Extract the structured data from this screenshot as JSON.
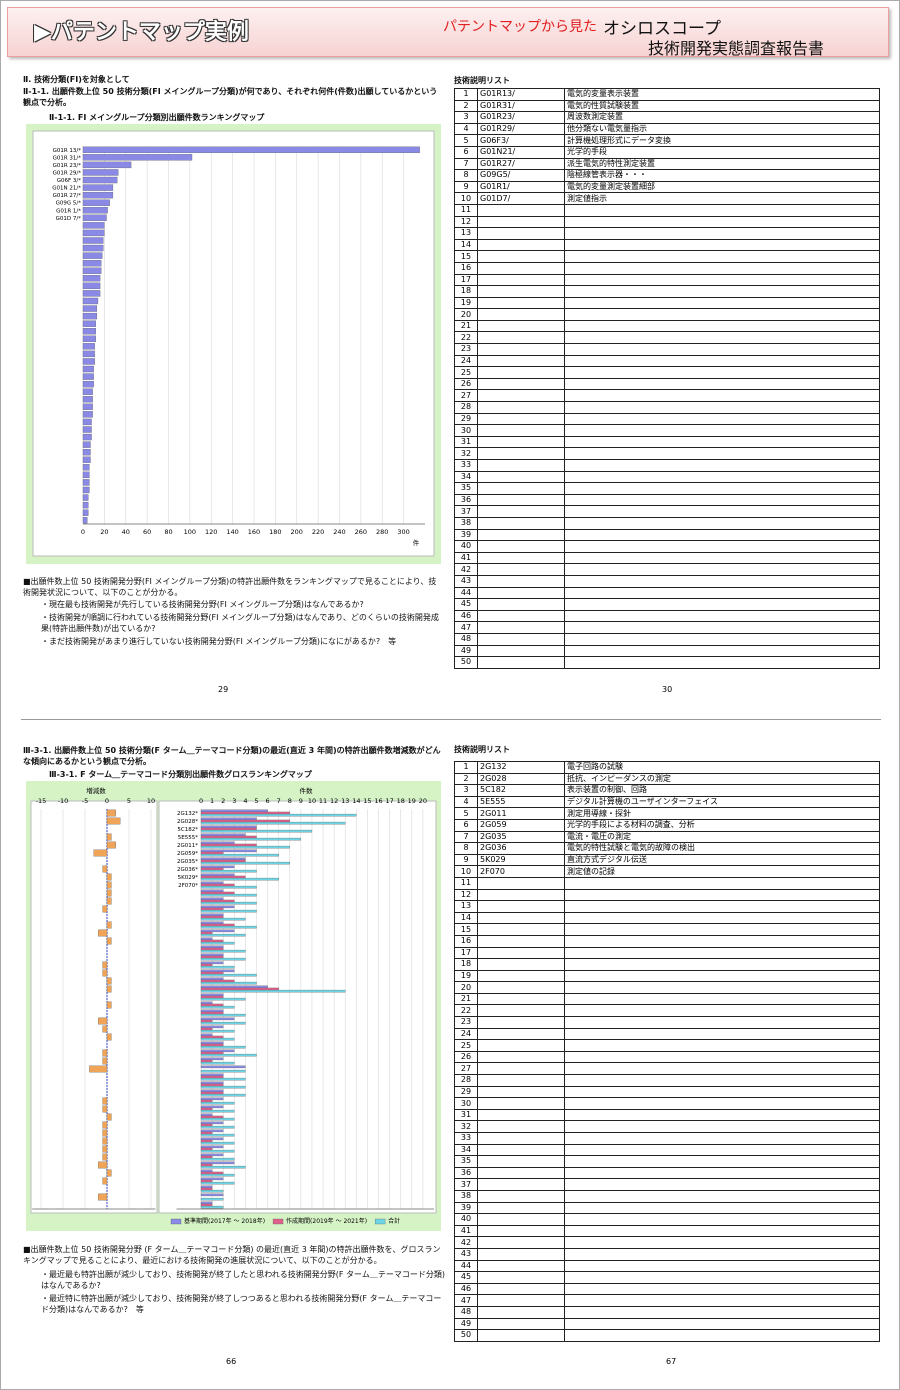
{
  "header": {
    "title": "▶パテントマップ実例",
    "subtitle": "パテントマップから見た",
    "product": "オシロスコープ",
    "report": "技術開発実態調査報告書"
  },
  "pages": [
    {
      "heading": "Ⅱ. 技術分類(FI)を対象として",
      "subheading": "Ⅱ-1-1. 出願件数上位 50 技術分類(FI メイングループ分類)が何であり、それぞれ何件(件数)出願しているかという観点で分析。",
      "chart_title": "Ⅱ-1-1. FI メイングループ分類別出願件数ランキングマップ",
      "chart_data": {
        "type": "bar",
        "categories": [
          "G01R 13/*",
          "G01R 31/*",
          "G01R 23/*",
          "G01R 29/*",
          "G06F 3/*",
          "G01N 21/*",
          "G01R 27/*",
          "G09G 5/*",
          "G01R 1/*",
          "G01D 7/*",
          null,
          null,
          null,
          null,
          null,
          null,
          null,
          null,
          null,
          null,
          null,
          null,
          null,
          null,
          null,
          null,
          null,
          null,
          null,
          null,
          null,
          null,
          null,
          null,
          null,
          null,
          null,
          null,
          null,
          null,
          null,
          null,
          null,
          null,
          null,
          null,
          null,
          null,
          null,
          null
        ],
        "values": [
          315,
          102,
          45,
          33,
          32,
          28,
          28,
          25,
          23,
          22,
          20,
          20,
          19,
          19,
          18,
          17,
          17,
          16,
          16,
          16,
          14,
          13,
          13,
          12,
          12,
          12,
          11,
          11,
          11,
          10,
          10,
          10,
          9,
          9,
          9,
          9,
          8,
          8,
          8,
          7,
          7,
          7,
          6,
          6,
          6,
          6,
          5,
          5,
          5,
          4
        ],
        "color": "#8a8ae6",
        "xlim": [
          0,
          320
        ],
        "xticks": [
          0,
          20,
          40,
          60,
          80,
          100,
          120,
          140,
          160,
          180,
          200,
          220,
          240,
          260,
          280,
          300
        ],
        "xlabel": "件",
        "grid": true
      },
      "note": "■出願件数上位 50 技術開発分野(FI メイングループ分類)の特許出願件数をランキングマップで見ることにより、技術開発状況について、以下のことが分かる。",
      "bullets": [
        "・現在最も技術開発が先行している技術開発分野(FI メイングループ分類)はなんであるか?",
        "・技術開発が順調に行われている技術開発分野(FI メイングループ分類)はなんであり、どのくらいの技術開発成果(特許出願件数)が出ているか?",
        "・まだ技術開発があまり進行していない技術開発分野(FI メイングループ分類)になにがあるか?　等"
      ],
      "list_title": "技術説明リスト",
      "table": {
        "rows": [
          [
            1,
            "G01R13/",
            "電気的変量表示装置"
          ],
          [
            2,
            "G01R31/",
            "電気的性質試験装置"
          ],
          [
            3,
            "G01R23/",
            "周波数測定装置"
          ],
          [
            4,
            "G01R29/",
            "他分類ない電気量指示"
          ],
          [
            5,
            "G06F3/",
            "計算機処理形式にデータ変換"
          ],
          [
            6,
            "G01N21/",
            "光学的手段"
          ],
          [
            7,
            "G01R27/",
            "派生電気的特性測定装置"
          ],
          [
            8,
            "G09G5/",
            "陰極線管表示器・・・"
          ],
          [
            9,
            "G01R1/",
            "電気的変量測定装置細部"
          ],
          [
            10,
            "G01D7/",
            "測定値指示"
          ],
          [
            11
          ],
          [
            12
          ],
          [
            13
          ],
          [
            14
          ],
          [
            15
          ],
          [
            16
          ],
          [
            17
          ],
          [
            18
          ],
          [
            19
          ],
          [
            20
          ],
          [
            21
          ],
          [
            22
          ],
          [
            23
          ],
          [
            24
          ],
          [
            25
          ],
          [
            26
          ],
          [
            27
          ],
          [
            28
          ],
          [
            29
          ],
          [
            30
          ],
          [
            31
          ],
          [
            32
          ],
          [
            33
          ],
          [
            34
          ],
          [
            35
          ],
          [
            36
          ],
          [
            37
          ],
          [
            38
          ],
          [
            39
          ],
          [
            40
          ],
          [
            41
          ],
          [
            42
          ],
          [
            43
          ],
          [
            44
          ],
          [
            45
          ],
          [
            46
          ],
          [
            47
          ],
          [
            48
          ],
          [
            49
          ],
          [
            50
          ]
        ]
      },
      "page_numbers": [
        29,
        30
      ]
    },
    {
      "subheading": "Ⅲ-3-1. 出願件数上位 50 技術分類(F ターム＿テーマコード分類)の最近(直近 3 年間)の特許出願件数増減数がどんな傾向にあるかという観点で分析。",
      "chart_title": "Ⅲ-3-1. F ターム＿テーマコード分類別出願件数グロスランキングマップ",
      "chart_data": [
        {
          "type": "bar",
          "xlabel": "増減数",
          "values": [
            2,
            3,
            0,
            1,
            2,
            -3,
            0,
            -1,
            1,
            1,
            1,
            1,
            -1,
            0,
            1,
            -2,
            1,
            0,
            0,
            -1,
            -1,
            1,
            1,
            0,
            1,
            0,
            -2,
            -1,
            1,
            0,
            -1,
            -1,
            -4,
            0,
            0,
            0,
            -1,
            -1,
            1,
            -1,
            -1,
            -1,
            -1,
            -1,
            -2,
            1,
            -1,
            0,
            -2,
            0
          ],
          "color": "#f0a458",
          "xlim": [
            -17,
            11
          ],
          "xticks": [
            -15,
            -10,
            -5,
            0,
            5,
            10
          ],
          "grid": true
        },
        {
          "type": "bar",
          "xlabel": "件数",
          "categories": [
            "2G132*",
            "2G028*",
            "5C182*",
            "5E555*",
            "2G011*",
            "2G059*",
            "2G035*",
            "2G036*",
            "5K029*",
            "2F070*",
            null,
            null,
            null,
            null,
            null,
            null,
            null,
            null,
            null,
            null,
            null,
            null,
            null,
            null,
            null,
            null,
            null,
            null,
            null,
            null,
            null,
            null,
            null,
            null,
            null,
            null,
            null,
            null,
            null,
            null,
            null,
            null,
            null,
            null,
            null,
            null,
            null,
            null,
            null,
            null
          ],
          "series": [
            {
              "name": "基準期間(2017年 ～ 2018年)",
              "color": "#8a8ae6",
              "values": [
                6,
                5,
                5,
                4,
                3,
                5,
                4,
                3,
                3,
                2,
                2,
                2,
                3,
                2,
                2,
                3,
                1,
                2,
                2,
                2,
                3,
                2,
                6,
                2,
                1,
                2,
                3,
                2,
                1,
                2,
                3,
                2,
                4,
                2,
                2,
                2,
                2,
                2,
                1,
                2,
                2,
                2,
                2,
                2,
                3,
                1,
                2,
                1,
                2,
                1
              ]
            },
            {
              "name": "作成期間(2019年 ～ 2021年)",
              "color": "#e0608c",
              "values": [
                8,
                8,
                5,
                5,
                5,
                2,
                4,
                2,
                4,
                3,
                3,
                3,
                2,
                2,
                3,
                1,
                2,
                2,
                2,
                1,
                2,
                3,
                7,
                2,
                2,
                2,
                1,
                1,
                2,
                2,
                2,
                1,
                0,
                2,
                2,
                2,
                1,
                1,
                2,
                1,
                1,
                1,
                1,
                1,
                1,
                2,
                1,
                1,
                0,
                1
              ]
            },
            {
              "name": "合計",
              "color": "#6cd4e4",
              "values": [
                14,
                13,
                10,
                9,
                8,
                7,
                8,
                5,
                7,
                5,
                5,
                5,
                5,
                4,
                5,
                4,
                3,
                4,
                4,
                3,
                5,
                5,
                13,
                4,
                3,
                4,
                4,
                3,
                3,
                4,
                5,
                3,
                4,
                4,
                4,
                4,
                3,
                3,
                3,
                3,
                3,
                3,
                3,
                3,
                4,
                3,
                3,
                2,
                2,
                2
              ]
            }
          ],
          "xlim": [
            -2.2,
            21
          ],
          "xticks": [
            0,
            1,
            2,
            3,
            4,
            5,
            6,
            7,
            8,
            9,
            10,
            11,
            12,
            13,
            14,
            15,
            16,
            17,
            18,
            19,
            20
          ],
          "grid": true,
          "legend": "bottom"
        }
      ],
      "note": "■出願件数上位 50 技術開発分野 (F ターム＿テーマコード分類) の最近(直近 3 年間)の特許出願件数を、グロスランキングマップで見ることにより、最近における技術開発の進展状況について、以下のことが分かる。",
      "bullets": [
        "・最近最も特許出願が減少しており、技術開発が終了したと思われる技術開発分野(F ターム＿テーマコード分類)はなんであるか?",
        "・最近特に特許出願が減少しており、技術開発が終了しつつあると思われる技術開発分野(F ターム＿テーマコード分類)はなんであるか?　等"
      ],
      "list_title": "技術説明リスト",
      "table": {
        "rows": [
          [
            1,
            "2G132",
            "電子回路の試験"
          ],
          [
            2,
            "2G028",
            "抵抗、インピーダンスの測定"
          ],
          [
            3,
            "5C182",
            "表示装置の制御、回路"
          ],
          [
            4,
            "5E555",
            "デジタル計算機のユーザインターフェイス"
          ],
          [
            5,
            "2G011",
            "測定用導線・探針"
          ],
          [
            6,
            "2G059",
            "光学的手段による材料の調査、分析"
          ],
          [
            7,
            "2G035",
            "電流・電圧の測定"
          ],
          [
            8,
            "2G036",
            "電気的特性試験と電気的故障の検出"
          ],
          [
            9,
            "5K029",
            "直流方式デジタル伝送"
          ],
          [
            10,
            "2F070",
            "測定値の記録"
          ],
          [
            11
          ],
          [
            12
          ],
          [
            13
          ],
          [
            14
          ],
          [
            15
          ],
          [
            16
          ],
          [
            17
          ],
          [
            18
          ],
          [
            19
          ],
          [
            20
          ],
          [
            21
          ],
          [
            22
          ],
          [
            23
          ],
          [
            24
          ],
          [
            25
          ],
          [
            26
          ],
          [
            27
          ],
          [
            28
          ],
          [
            29
          ],
          [
            30
          ],
          [
            31
          ],
          [
            32
          ],
          [
            33
          ],
          [
            34
          ],
          [
            35
          ],
          [
            36
          ],
          [
            37
          ],
          [
            38
          ],
          [
            39
          ],
          [
            40
          ],
          [
            41
          ],
          [
            42
          ],
          [
            43
          ],
          [
            44
          ],
          [
            45
          ],
          [
            46
          ],
          [
            47
          ],
          [
            48
          ],
          [
            49
          ],
          [
            50
          ]
        ]
      },
      "page_numbers": [
        66,
        67
      ]
    }
  ]
}
